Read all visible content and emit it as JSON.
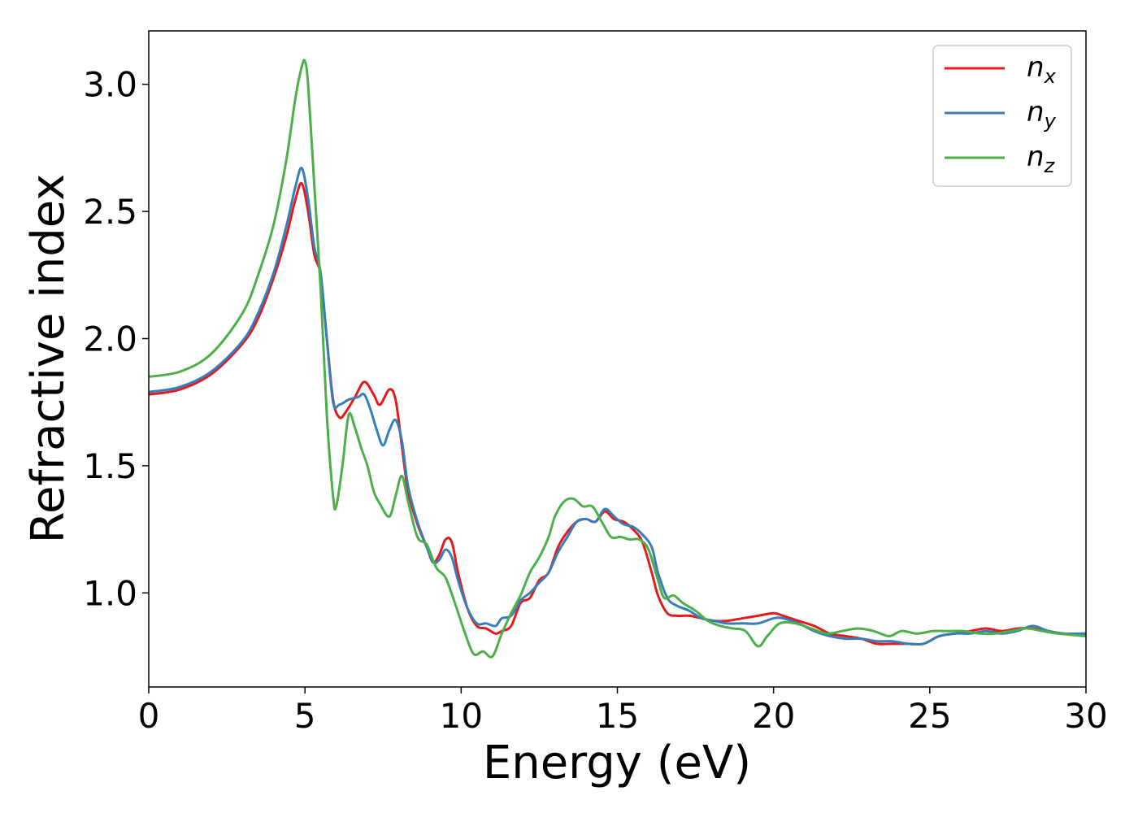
{
  "chart_data": {
    "type": "line",
    "title": "",
    "xlabel": "Energy (eV)",
    "ylabel": "Refractive index",
    "xlim": [
      0,
      30
    ],
    "ylim": [
      0.63,
      3.21
    ],
    "xticks": [
      0,
      5,
      10,
      15,
      20,
      25,
      30
    ],
    "yticks": [
      1.0,
      1.5,
      2.0,
      2.5,
      3.0
    ],
    "xtick_labels": [
      "0",
      "5",
      "10",
      "15",
      "20",
      "25",
      "30"
    ],
    "ytick_labels": [
      "1.0",
      "1.5",
      "2.0",
      "2.5",
      "3.0"
    ],
    "grid": false,
    "legend_position": "top-right",
    "series": [
      {
        "name": "n",
        "subscript": "x",
        "color": "#e41a1c",
        "x": [
          0,
          1,
          2,
          3,
          3.5,
          4,
          4.4,
          4.7,
          4.9,
          5.1,
          5.3,
          5.5,
          5.7,
          5.9,
          6.1,
          6.3,
          6.6,
          6.9,
          7.2,
          7.4,
          7.7,
          7.9,
          8.1,
          8.3,
          8.6,
          8.9,
          9.1,
          9.3,
          9.5,
          9.7,
          9.9,
          10.2,
          10.5,
          10.8,
          11.1,
          11.3,
          11.6,
          11.9,
          12.2,
          12.5,
          12.8,
          13.1,
          13.4,
          13.7,
          14.0,
          14.3,
          14.6,
          14.9,
          15.2,
          15.5,
          15.8,
          16.1,
          16.3,
          16.6,
          16.9,
          17.3,
          17.7,
          18.1,
          18.5,
          19.0,
          19.5,
          20.0,
          20.3,
          20.8,
          21.3,
          21.8,
          22.3,
          22.8,
          23.3,
          23.8,
          24.3,
          24.8,
          25.3,
          25.8,
          26.3,
          26.8,
          27.3,
          27.8,
          28.3,
          28.8,
          29.3,
          30
        ],
        "values": [
          1.78,
          1.8,
          1.86,
          1.98,
          2.08,
          2.24,
          2.4,
          2.55,
          2.61,
          2.5,
          2.33,
          2.25,
          2.0,
          1.76,
          1.69,
          1.71,
          1.77,
          1.83,
          1.78,
          1.74,
          1.8,
          1.76,
          1.58,
          1.4,
          1.27,
          1.18,
          1.12,
          1.15,
          1.21,
          1.2,
          1.08,
          0.94,
          0.87,
          0.86,
          0.84,
          0.85,
          0.87,
          0.96,
          0.98,
          1.05,
          1.08,
          1.18,
          1.24,
          1.28,
          1.29,
          1.28,
          1.32,
          1.29,
          1.28,
          1.25,
          1.2,
          1.08,
          0.99,
          0.92,
          0.91,
          0.91,
          0.9,
          0.89,
          0.89,
          0.9,
          0.91,
          0.92,
          0.91,
          0.89,
          0.87,
          0.84,
          0.83,
          0.82,
          0.8,
          0.8,
          0.8,
          0.8,
          0.83,
          0.84,
          0.85,
          0.86,
          0.85,
          0.86,
          0.86,
          0.85,
          0.84,
          0.84
        ]
      },
      {
        "name": "n",
        "subscript": "y",
        "color": "#377eb8",
        "x": [
          0,
          1,
          2,
          3,
          3.5,
          4,
          4.4,
          4.7,
          4.9,
          5.1,
          5.3,
          5.5,
          5.7,
          5.9,
          6.1,
          6.4,
          6.7,
          6.9,
          7.1,
          7.3,
          7.5,
          7.7,
          7.9,
          8.1,
          8.3,
          8.6,
          8.9,
          9.1,
          9.3,
          9.5,
          9.7,
          9.9,
          10.2,
          10.5,
          10.8,
          11.1,
          11.3,
          11.6,
          11.9,
          12.2,
          12.5,
          12.8,
          13.1,
          13.4,
          13.7,
          14.0,
          14.3,
          14.6,
          14.9,
          15.2,
          15.5,
          15.8,
          16.1,
          16.3,
          16.6,
          16.9,
          17.3,
          17.7,
          18.1,
          18.5,
          19.0,
          19.5,
          20.0,
          20.3,
          20.8,
          21.3,
          21.8,
          22.3,
          22.8,
          23.3,
          23.8,
          24.3,
          24.8,
          25.3,
          25.8,
          26.3,
          26.8,
          27.3,
          27.8,
          28.3,
          28.8,
          29.3,
          30
        ],
        "values": [
          1.79,
          1.81,
          1.87,
          1.99,
          2.1,
          2.26,
          2.44,
          2.6,
          2.67,
          2.55,
          2.36,
          2.26,
          2.0,
          1.75,
          1.74,
          1.76,
          1.77,
          1.78,
          1.72,
          1.64,
          1.58,
          1.64,
          1.68,
          1.6,
          1.42,
          1.28,
          1.18,
          1.12,
          1.13,
          1.17,
          1.14,
          1.05,
          0.94,
          0.88,
          0.88,
          0.87,
          0.9,
          0.91,
          0.97,
          1.0,
          1.04,
          1.08,
          1.16,
          1.22,
          1.28,
          1.29,
          1.28,
          1.33,
          1.3,
          1.27,
          1.26,
          1.23,
          1.18,
          1.08,
          0.98,
          0.95,
          0.93,
          0.9,
          0.89,
          0.88,
          0.88,
          0.88,
          0.9,
          0.9,
          0.88,
          0.85,
          0.83,
          0.82,
          0.82,
          0.81,
          0.81,
          0.8,
          0.8,
          0.83,
          0.84,
          0.84,
          0.85,
          0.84,
          0.85,
          0.87,
          0.85,
          0.84,
          0.84
        ]
      },
      {
        "name": "n",
        "subscript": "z",
        "color": "#4daf4a",
        "x": [
          0,
          1,
          2,
          3,
          3.5,
          4,
          4.4,
          4.7,
          4.9,
          5.0,
          5.1,
          5.3,
          5.5,
          5.7,
          5.9,
          6.0,
          6.2,
          6.4,
          6.6,
          6.8,
          7.0,
          7.2,
          7.4,
          7.7,
          7.9,
          8.1,
          8.3,
          8.6,
          8.9,
          9.2,
          9.5,
          9.8,
          10.1,
          10.4,
          10.7,
          11.0,
          11.3,
          11.6,
          11.9,
          12.2,
          12.5,
          12.8,
          13.0,
          13.3,
          13.6,
          13.9,
          14.2,
          14.5,
          14.8,
          15.1,
          15.4,
          15.7,
          16.0,
          16.3,
          16.5,
          16.8,
          17.1,
          17.5,
          17.9,
          18.3,
          18.7,
          19.1,
          19.5,
          19.8,
          20.2,
          20.7,
          21.2,
          21.7,
          22.2,
          22.7,
          23.2,
          23.7,
          24.1,
          24.6,
          25.1,
          25.6,
          26.1,
          26.6,
          27.1,
          27.6,
          28.1,
          28.6,
          29.1,
          30
        ],
        "values": [
          1.85,
          1.87,
          1.94,
          2.1,
          2.25,
          2.45,
          2.7,
          2.95,
          3.07,
          3.09,
          3.0,
          2.6,
          2.2,
          1.7,
          1.38,
          1.34,
          1.5,
          1.7,
          1.65,
          1.57,
          1.5,
          1.4,
          1.35,
          1.3,
          1.38,
          1.46,
          1.36,
          1.22,
          1.19,
          1.1,
          1.06,
          0.96,
          0.85,
          0.76,
          0.77,
          0.75,
          0.84,
          0.92,
          0.99,
          1.08,
          1.14,
          1.22,
          1.3,
          1.36,
          1.37,
          1.34,
          1.34,
          1.28,
          1.22,
          1.22,
          1.21,
          1.21,
          1.17,
          1.05,
          0.98,
          0.99,
          0.96,
          0.93,
          0.89,
          0.87,
          0.86,
          0.85,
          0.79,
          0.83,
          0.88,
          0.88,
          0.86,
          0.84,
          0.85,
          0.86,
          0.85,
          0.83,
          0.85,
          0.84,
          0.85,
          0.85,
          0.85,
          0.84,
          0.84,
          0.85,
          0.86,
          0.85,
          0.84,
          0.83
        ]
      }
    ]
  }
}
